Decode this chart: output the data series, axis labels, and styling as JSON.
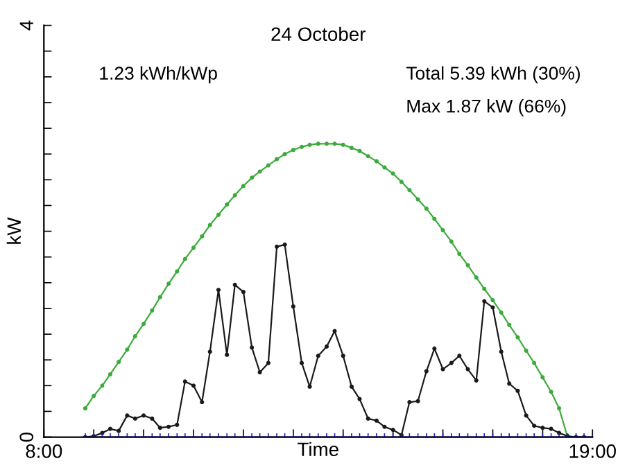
{
  "chart_data": {
    "type": "line",
    "title": "24 October",
    "xlabel": "Time",
    "ylabel": "kW",
    "annotations": [
      "1.23 kWh/kWp",
      "Total 5.39 kWh (30%)",
      "Max 1.87 kW (66%)"
    ],
    "xlim": [
      8,
      19
    ],
    "ylim": [
      0,
      4
    ],
    "xticks": [
      {
        "value": 8,
        "label": "8:00"
      },
      {
        "value": 9,
        "label": null
      },
      {
        "value": 10,
        "label": null
      },
      {
        "value": 11,
        "label": null
      },
      {
        "value": 12,
        "label": null
      },
      {
        "value": 13,
        "label": null
      },
      {
        "value": 14,
        "label": null
      },
      {
        "value": 15,
        "label": null
      },
      {
        "value": 16,
        "label": null
      },
      {
        "value": 17,
        "label": null
      },
      {
        "value": 18,
        "label": null
      },
      {
        "value": 19,
        "label": "19:00"
      }
    ],
    "yticks": [
      0,
      {
        "value": 0.25,
        "label": null
      },
      {
        "value": 0.5,
        "label": null
      },
      {
        "value": 0.75,
        "label": null
      },
      {
        "value": 1,
        "label": null
      },
      {
        "value": 1.25,
        "label": null
      },
      {
        "value": 1.5,
        "label": null
      },
      {
        "value": 1.75,
        "label": null
      },
      {
        "value": 2,
        "label": null
      },
      {
        "value": 2.25,
        "label": null
      },
      {
        "value": 2.5,
        "label": null
      },
      {
        "value": 2.75,
        "label": null
      },
      {
        "value": 3,
        "label": null
      },
      {
        "value": 3.25,
        "label": null
      },
      {
        "value": 3.5,
        "label": null
      },
      {
        "value": 3.75,
        "label": null
      },
      4
    ],
    "grid": false,
    "legend": false,
    "marker": "circle",
    "line_style": "solid",
    "series": [
      {
        "color": "#3cab3c",
        "x": [
          8.83,
          9.0,
          9.17,
          9.33,
          9.5,
          9.67,
          9.83,
          10.0,
          10.17,
          10.33,
          10.5,
          10.67,
          10.83,
          11.0,
          11.17,
          11.33,
          11.5,
          11.67,
          11.83,
          12.0,
          12.17,
          12.33,
          12.5,
          12.67,
          12.83,
          13.0,
          13.17,
          13.33,
          13.5,
          13.67,
          13.83,
          14.0,
          14.17,
          14.33,
          14.5,
          14.67,
          14.83,
          15.0,
          15.17,
          15.33,
          15.5,
          15.67,
          15.83,
          16.0,
          16.17,
          16.33,
          16.5,
          16.67,
          16.83,
          17.0,
          17.17,
          17.33,
          17.5,
          17.67,
          17.83,
          18.0,
          18.17,
          18.33,
          18.5,
          18.67,
          18.83
        ],
        "values": [
          0.28,
          0.4,
          0.5,
          0.61,
          0.73,
          0.85,
          0.98,
          1.1,
          1.23,
          1.36,
          1.49,
          1.61,
          1.73,
          1.84,
          1.95,
          2.06,
          2.16,
          2.26,
          2.35,
          2.44,
          2.52,
          2.58,
          2.64,
          2.7,
          2.75,
          2.79,
          2.82,
          2.84,
          2.85,
          2.85,
          2.85,
          2.84,
          2.81,
          2.78,
          2.73,
          2.68,
          2.62,
          2.56,
          2.48,
          2.4,
          2.31,
          2.22,
          2.12,
          2.01,
          1.9,
          1.78,
          1.67,
          1.55,
          1.44,
          1.33,
          1.21,
          1.09,
          0.97,
          0.84,
          0.72,
          0.58,
          0.44,
          0.28,
          0,
          0,
          0
        ]
      },
      {
        "color": "#1a1a1a",
        "x": [
          8.83,
          9.0,
          9.17,
          9.33,
          9.5,
          9.67,
          9.83,
          10.0,
          10.17,
          10.33,
          10.5,
          10.67,
          10.83,
          11.0,
          11.17,
          11.33,
          11.5,
          11.67,
          11.83,
          12.0,
          12.17,
          12.33,
          12.5,
          12.67,
          12.83,
          13.0,
          13.17,
          13.33,
          13.5,
          13.67,
          13.83,
          14.0,
          14.17,
          14.33,
          14.5,
          14.67,
          14.83,
          15.0,
          15.17,
          15.33,
          15.5,
          15.67,
          15.83,
          16.0,
          16.17,
          16.33,
          16.5,
          16.67,
          16.83,
          17.0,
          17.17,
          17.33,
          17.5,
          17.67,
          17.83,
          18.0,
          18.17,
          18.33,
          18.5,
          18.67,
          18.83
        ],
        "values": [
          0,
          0.01,
          0.04,
          0.08,
          0.06,
          0.21,
          0.18,
          0.21,
          0.18,
          0.09,
          0.1,
          0.12,
          0.54,
          0.5,
          0.34,
          0.83,
          1.43,
          0.8,
          1.48,
          1.41,
          0.87,
          0.63,
          0.72,
          1.85,
          1.87,
          1.27,
          0.72,
          0.49,
          0.79,
          0.88,
          1.03,
          0.79,
          0.49,
          0.37,
          0.18,
          0.16,
          0.1,
          0.07,
          0.02,
          0.34,
          0.35,
          0.64,
          0.86,
          0.66,
          0.72,
          0.79,
          0.66,
          0.55,
          1.32,
          1.26,
          0.83,
          0.52,
          0.45,
          0.21,
          0.11,
          0.09,
          0.08,
          0.04,
          0.01,
          0,
          0
        ]
      },
      {
        "color": "#2020e0",
        "x": [
          8.83,
          9.0,
          9.17,
          9.33,
          9.5,
          9.67,
          9.83,
          10.0,
          10.17,
          10.33,
          10.5,
          10.67,
          10.83,
          11.0,
          11.17,
          11.33,
          11.5,
          11.67,
          11.83,
          12.0,
          12.17,
          12.33,
          12.5,
          12.67,
          12.83,
          13.0,
          13.17,
          13.33,
          13.5,
          13.67,
          13.83,
          14.0,
          14.17,
          14.33,
          14.5,
          14.67,
          14.83,
          15.0,
          15.17,
          15.33,
          15.5,
          15.67,
          15.83,
          16.0,
          16.17,
          16.33,
          16.5,
          16.67,
          16.83,
          17.0,
          17.17,
          17.33,
          17.5,
          17.67,
          17.83,
          18.0,
          18.17,
          18.33,
          18.5,
          18.67,
          18.83,
          19.0
        ],
        "values": [
          0,
          0,
          0,
          0,
          0,
          0,
          0,
          0,
          0,
          0,
          0,
          0,
          0,
          0,
          0,
          0,
          0,
          0,
          0,
          0,
          0,
          0,
          0,
          0,
          0,
          0,
          0,
          0,
          0,
          0,
          0,
          0,
          0,
          0,
          0,
          0,
          0,
          0,
          0,
          0,
          0,
          0,
          0,
          0,
          0,
          0,
          0,
          0,
          0,
          0,
          0,
          0,
          0,
          0,
          0,
          0,
          0,
          0,
          0,
          0,
          0,
          0
        ],
        "marker": "cross"
      }
    ]
  }
}
